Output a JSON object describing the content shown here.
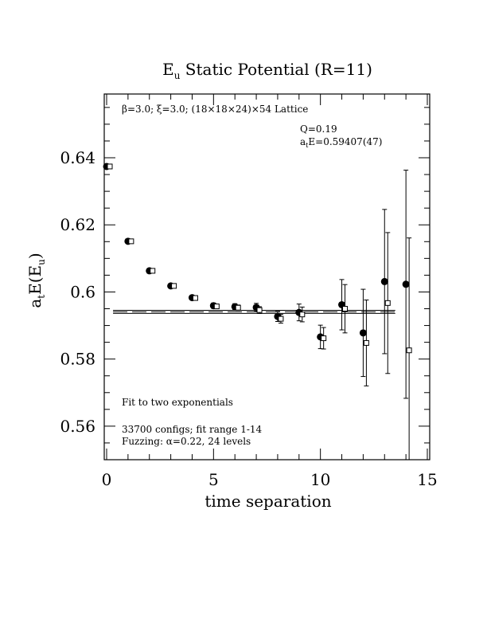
{
  "chart_data": {
    "type": "scatter",
    "title": "E",
    "title_sub": "u",
    "title_rest": " Static Potential (R=11)",
    "xlabel": "time separation",
    "ylabel_pre": "a",
    "ylabel_sub1": "t",
    "ylabel_mid": "E(E",
    "ylabel_sub2": "u",
    "ylabel_post": ")",
    "xlim": [
      0,
      15
    ],
    "ylim": [
      0.55,
      0.659
    ],
    "xticks": [
      0,
      5,
      10,
      15
    ],
    "xtick_labels": [
      "0",
      "5",
      "10",
      "15"
    ],
    "yticks": [
      0.56,
      0.58,
      0.6,
      0.62,
      0.64
    ],
    "ytick_labels": [
      "0.56",
      "0.58",
      "0.6",
      "0.62",
      "0.64"
    ],
    "annotations": {
      "lattice": "β=3.0; ξ=3.0; (18×18×24)×54 Lattice",
      "q": "Q=0.19",
      "ate_pre": "a",
      "ate_sub": "t",
      "ate_post": "E=0.59407(47)",
      "fit": "Fit to two exponentials",
      "configs": "33700 configs; fit range 1-14",
      "fuzzing": "Fuzzing: α=0.22, 24 levels"
    },
    "fit": {
      "value": 0.59407,
      "error": 0.00047,
      "x_range": [
        0.3,
        13.5
      ]
    },
    "series": [
      {
        "marker": "filled-circle",
        "points": [
          {
            "x": 0,
            "y": 0.6374,
            "err": 0.0003
          },
          {
            "x": 1,
            "y": 0.6151,
            "err": 0.0003
          },
          {
            "x": 2,
            "y": 0.6063,
            "err": 0.0004
          },
          {
            "x": 3,
            "y": 0.6018,
            "err": 0.0005
          },
          {
            "x": 4,
            "y": 0.5983,
            "err": 0.0006
          },
          {
            "x": 5,
            "y": 0.5959,
            "err": 0.0008
          },
          {
            "x": 6,
            "y": 0.5956,
            "err": 0.0009
          },
          {
            "x": 7,
            "y": 0.5954,
            "err": 0.0012
          },
          {
            "x": 8,
            "y": 0.5927,
            "err": 0.0015
          },
          {
            "x": 9,
            "y": 0.5939,
            "err": 0.0025
          },
          {
            "x": 10,
            "y": 0.5866,
            "err": 0.0035
          },
          {
            "x": 11,
            "y": 0.5962,
            "err": 0.0075
          },
          {
            "x": 12,
            "y": 0.5878,
            "err": 0.013
          },
          {
            "x": 13,
            "y": 0.6031,
            "err": 0.0215
          },
          {
            "x": 14,
            "y": 0.6023,
            "err": 0.034
          }
        ]
      },
      {
        "marker": "open-square",
        "points": [
          {
            "x": 0,
            "y": 0.6374,
            "err": 0.0003
          },
          {
            "x": 1,
            "y": 0.6151,
            "err": 0.0003
          },
          {
            "x": 2,
            "y": 0.6063,
            "err": 0.0004
          },
          {
            "x": 3,
            "y": 0.6018,
            "err": 0.0004
          },
          {
            "x": 4,
            "y": 0.5982,
            "err": 0.0005
          },
          {
            "x": 5,
            "y": 0.5957,
            "err": 0.0006
          },
          {
            "x": 6,
            "y": 0.5953,
            "err": 0.0008
          },
          {
            "x": 7,
            "y": 0.5946,
            "err": 0.001
          },
          {
            "x": 8,
            "y": 0.592,
            "err": 0.0013
          },
          {
            "x": 9,
            "y": 0.5933,
            "err": 0.0022
          },
          {
            "x": 10,
            "y": 0.5862,
            "err": 0.0032
          },
          {
            "x": 11,
            "y": 0.595,
            "err": 0.0072
          },
          {
            "x": 12,
            "y": 0.5848,
            "err": 0.0128
          },
          {
            "x": 13,
            "y": 0.5967,
            "err": 0.021
          },
          {
            "x": 14,
            "y": 0.5826,
            "err": 0.0335
          }
        ]
      }
    ]
  }
}
